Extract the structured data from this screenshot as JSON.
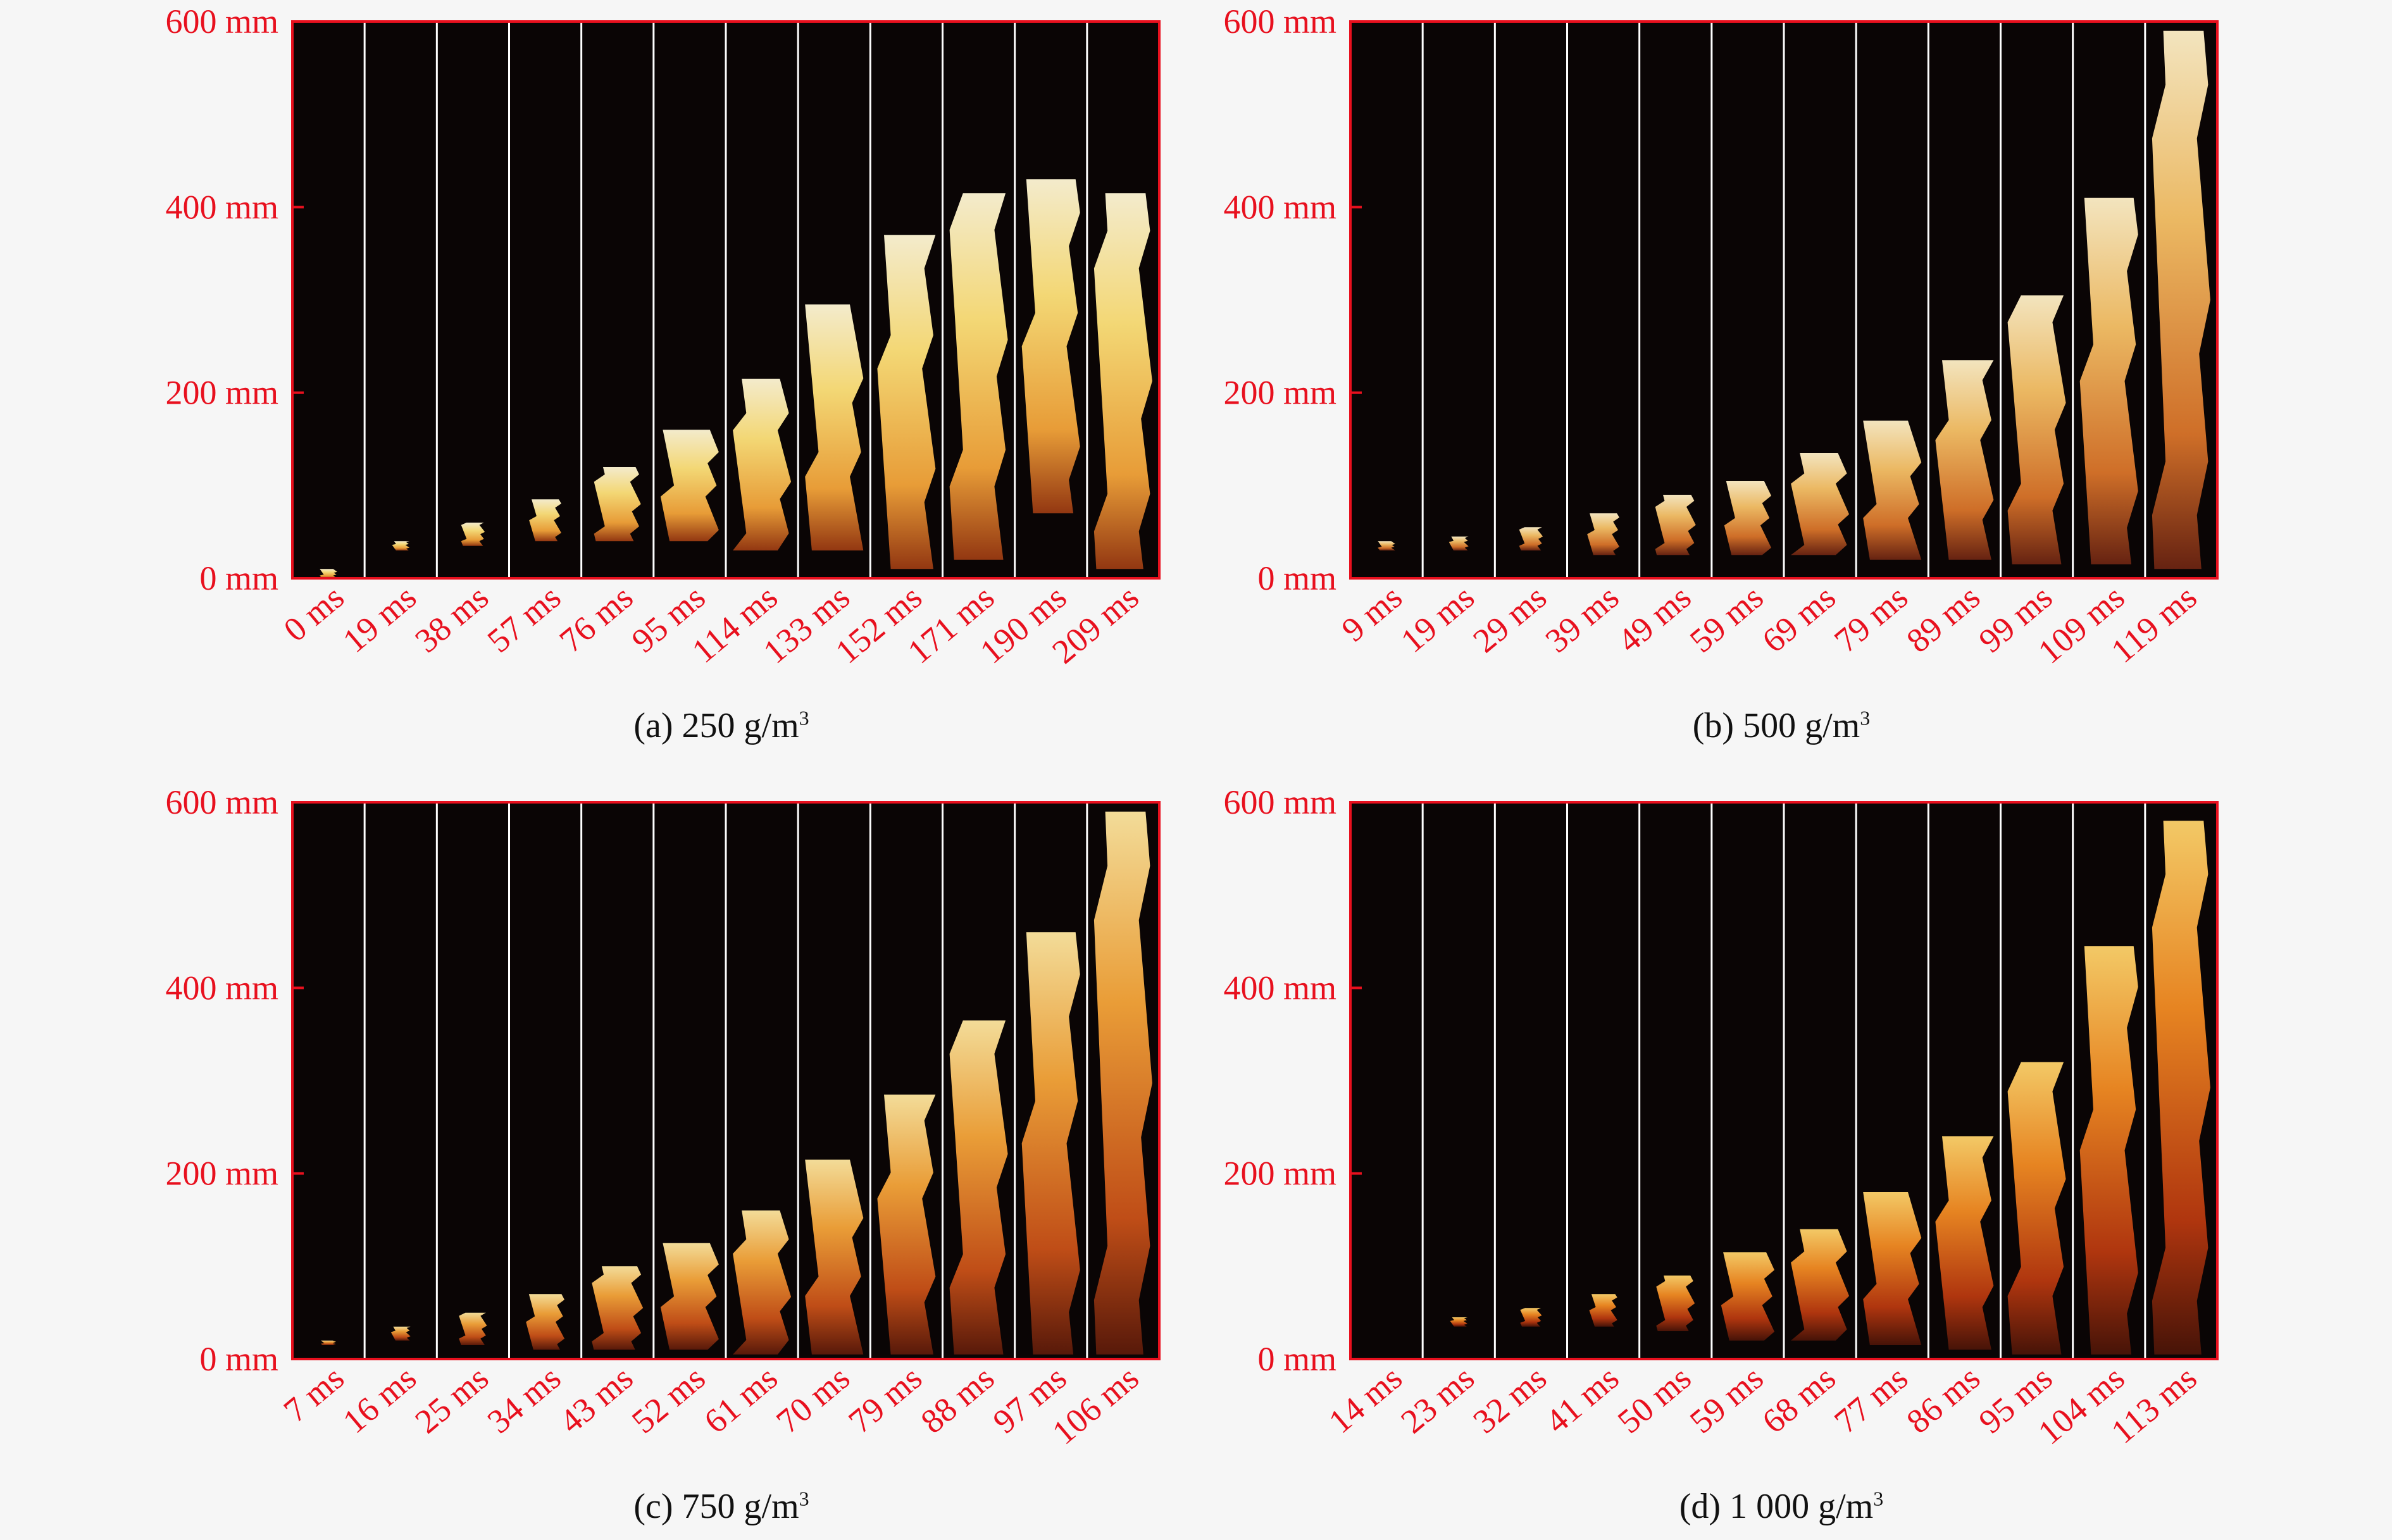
{
  "axis_unit": "mm",
  "y_ticks": [
    "600 mm",
    "400 mm",
    "200 mm",
    "0 mm"
  ],
  "y_tick_values": [
    600,
    400,
    200,
    0
  ],
  "colors": {
    "label_red": "#e8101e",
    "frame_red": "#e8101e",
    "background": "#0a0505",
    "divider": "#ffffff"
  },
  "panels": [
    {
      "id": "a",
      "caption_prefix": "(a) 250 g/m",
      "caption_sup": "3",
      "times": [
        "0 ms",
        "19 ms",
        "38 ms",
        "57 ms",
        "76 ms",
        "95 ms",
        "114 ms",
        "133 ms",
        "152 ms",
        "171 ms",
        "190 ms",
        "209 ms"
      ],
      "flame_top_mm": [
        10,
        40,
        60,
        85,
        120,
        160,
        215,
        295,
        370,
        415,
        430,
        415
      ],
      "flame_bottom_mm": [
        0,
        30,
        35,
        40,
        40,
        40,
        30,
        30,
        10,
        20,
        70,
        10
      ],
      "tone": "bright"
    },
    {
      "id": "b",
      "caption_prefix": "(b) 500 g/m",
      "caption_sup": "3",
      "times": [
        "9 ms",
        "19 ms",
        "29 ms",
        "39 ms",
        "49 ms",
        "59 ms",
        "69 ms",
        "79 ms",
        "89 ms",
        "99 ms",
        "109 ms",
        "119 ms"
      ],
      "flame_top_mm": [
        40,
        45,
        55,
        70,
        90,
        105,
        135,
        170,
        235,
        305,
        410,
        590
      ],
      "flame_bottom_mm": [
        30,
        30,
        30,
        25,
        25,
        25,
        25,
        20,
        20,
        15,
        15,
        10
      ],
      "tone": "mixed"
    },
    {
      "id": "c",
      "caption_prefix": "(c) 750 g/m",
      "caption_sup": "3",
      "times": [
        "7 ms",
        "16 ms",
        "25 ms",
        "34 ms",
        "43 ms",
        "52 ms",
        "61 ms",
        "70 ms",
        "79 ms",
        "88 ms",
        "97 ms",
        "106 ms"
      ],
      "flame_top_mm": [
        20,
        35,
        50,
        70,
        100,
        125,
        160,
        215,
        285,
        365,
        460,
        590
      ],
      "flame_bottom_mm": [
        15,
        20,
        15,
        10,
        10,
        10,
        5,
        5,
        5,
        5,
        5,
        5
      ],
      "tone": "orange"
    },
    {
      "id": "d",
      "caption_prefix": "(d) 1 000 g/m",
      "caption_sup": "3",
      "times": [
        "14 ms",
        "23 ms",
        "32 ms",
        "41 ms",
        "50 ms",
        "59 ms",
        "68 ms",
        "77 ms",
        "86 ms",
        "95 ms",
        "104 ms",
        "113 ms"
      ],
      "flame_top_mm": [
        0,
        45,
        55,
        70,
        90,
        115,
        140,
        180,
        240,
        320,
        445,
        580
      ],
      "flame_bottom_mm": [
        0,
        35,
        35,
        35,
        30,
        20,
        20,
        15,
        10,
        5,
        5,
        5
      ],
      "tone": "deep"
    }
  ]
}
